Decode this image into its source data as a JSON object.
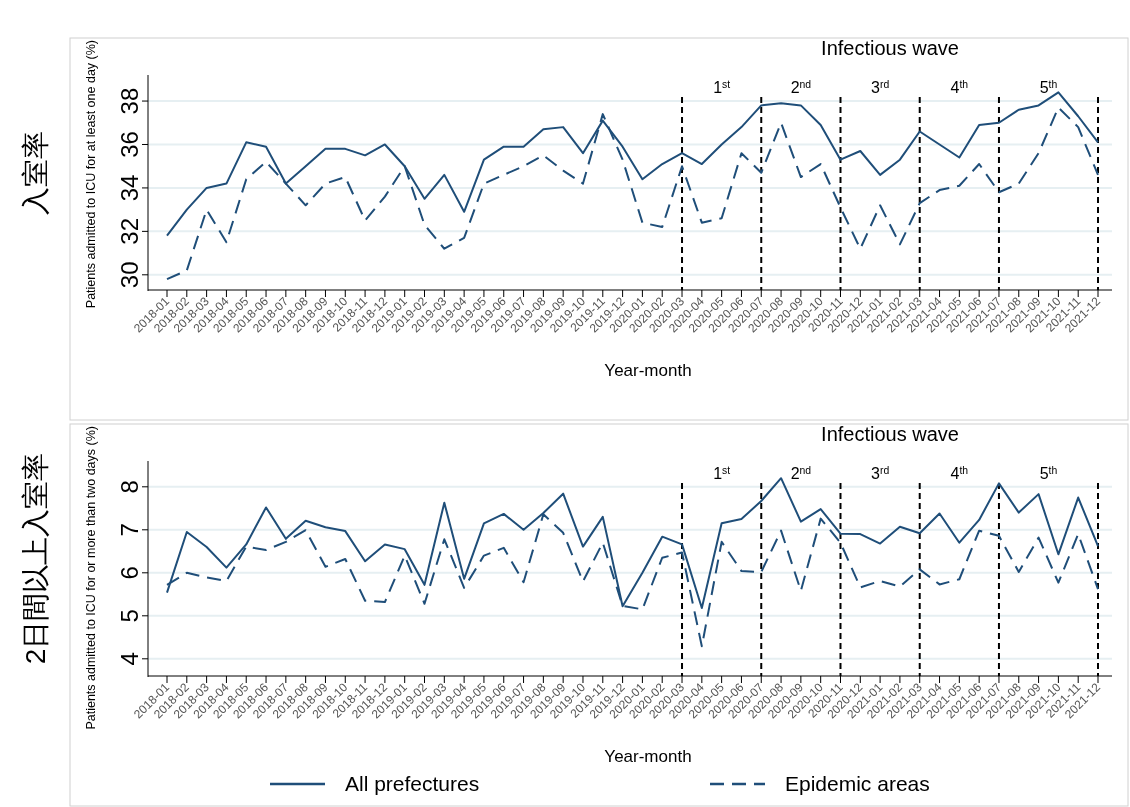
{
  "chart_data": [
    {
      "type": "line",
      "title": "入室率",
      "ylabel": "Patients admitted to ICU for at least one day (%)",
      "xlabel": "Year-month",
      "categories": [
        "2018-01",
        "2018-02",
        "2018-03",
        "2018-04",
        "2018-05",
        "2018-06",
        "2018-07",
        "2018-08",
        "2018-09",
        "2018-10",
        "2018-11",
        "2018-12",
        "2019-01",
        "2019-02",
        "2019-03",
        "2019-04",
        "2019-05",
        "2019-06",
        "2019-07",
        "2019-08",
        "2019-09",
        "2019-10",
        "2019-11",
        "2019-12",
        "2020-01",
        "2020-02",
        "2020-03",
        "2020-04",
        "2020-05",
        "2020-06",
        "2020-07",
        "2020-08",
        "2020-09",
        "2020-10",
        "2020-11",
        "2020-12",
        "2021-01",
        "2021-02",
        "2021-03",
        "2021-04",
        "2021-05",
        "2021-06",
        "2021-07",
        "2021-08",
        "2021-09",
        "2021-10",
        "2021-11",
        "2021-12"
      ],
      "series": [
        {
          "color": "#1f4e79",
          "line_style": "solid",
          "values": [
            31.8,
            33.0,
            34.0,
            34.2,
            36.1,
            35.9,
            34.2,
            35.0,
            35.8,
            35.8,
            35.5,
            36.0,
            35.0,
            33.5,
            34.6,
            32.9,
            35.3,
            35.9,
            35.9,
            36.7,
            36.8,
            35.6,
            37.1,
            35.9,
            34.4,
            35.1,
            35.6,
            35.1,
            36.0,
            36.8,
            37.8,
            37.9,
            37.8,
            36.9,
            35.3,
            35.7,
            34.6,
            35.3,
            36.6,
            36.0,
            35.4,
            36.9,
            37.0,
            37.6,
            37.8,
            38.4,
            37.3,
            36.1
          ]
        },
        {
          "color": "#1f4e79",
          "line_style": "dashed",
          "values": [
            29.8,
            30.2,
            33.0,
            31.5,
            34.4,
            35.2,
            34.2,
            33.2,
            34.2,
            34.5,
            32.5,
            33.6,
            35.0,
            32.3,
            31.2,
            31.7,
            34.2,
            34.6,
            35.0,
            35.5,
            34.8,
            34.2,
            37.4,
            35.3,
            32.4,
            32.2,
            35.0,
            32.4,
            32.6,
            35.6,
            34.7,
            37.0,
            34.5,
            35.1,
            33.1,
            31.2,
            33.2,
            31.4,
            33.3,
            33.9,
            34.1,
            35.1,
            33.8,
            34.2,
            35.6,
            37.7,
            36.8,
            34.6
          ]
        }
      ],
      "ylim": [
        29.3,
        39.2
      ],
      "yticks": [
        30,
        32,
        34,
        36,
        38
      ],
      "grid": "y",
      "legend": false,
      "ref_lines": [
        {
          "axis": "x",
          "value": "2020-03",
          "color": "#000000",
          "line_style": "dashed"
        },
        {
          "axis": "x",
          "value": "2020-07",
          "color": "#000000",
          "line_style": "dashed"
        },
        {
          "axis": "x",
          "value": "2020-11",
          "color": "#000000",
          "line_style": "dashed"
        },
        {
          "axis": "x",
          "value": "2021-03",
          "color": "#000000",
          "line_style": "dashed"
        },
        {
          "axis": "x",
          "value": "2021-07",
          "color": "#000000",
          "line_style": "dashed"
        },
        {
          "axis": "x",
          "value": "2021-12",
          "color": "#000000",
          "line_style": "dashed"
        }
      ],
      "annotations": [
        "Infectious wave",
        "1$^{st}$",
        "2$^{nd}$",
        "3$^{rd}$",
        "4$^{th}$",
        "5$^{th}$"
      ]
    },
    {
      "type": "line",
      "title": "2日間以上入室率",
      "ylabel": "Patients admitted to ICU for or more than two days (%)",
      "xlabel": "Year-month",
      "categories": [
        "2018-01",
        "2018-02",
        "2018-03",
        "2018-04",
        "2018-05",
        "2018-06",
        "2018-07",
        "2018-08",
        "2018-09",
        "2018-10",
        "2018-11",
        "2018-12",
        "2019-01",
        "2019-02",
        "2019-03",
        "2019-04",
        "2019-05",
        "2019-06",
        "2019-07",
        "2019-08",
        "2019-09",
        "2019-10",
        "2019-11",
        "2019-12",
        "2020-01",
        "2020-02",
        "2020-03",
        "2020-04",
        "2020-05",
        "2020-06",
        "2020-07",
        "2020-08",
        "2020-09",
        "2020-10",
        "2020-11",
        "2020-12",
        "2021-01",
        "2021-02",
        "2021-03",
        "2021-04",
        "2021-05",
        "2021-06",
        "2021-07",
        "2021-08",
        "2021-09",
        "2021-10",
        "2021-11",
        "2021-12"
      ],
      "series": [
        {
          "name": "All prefectures",
          "color": "#1f4e79",
          "line_style": "solid",
          "values": [
            5.54,
            6.95,
            6.6,
            6.12,
            6.66,
            7.52,
            6.79,
            7.21,
            7.06,
            6.97,
            6.27,
            6.66,
            6.55,
            5.72,
            7.63,
            5.86,
            7.15,
            7.37,
            7.0,
            7.39,
            7.84,
            6.61,
            7.3,
            5.22,
            6.0,
            6.84,
            6.66,
            5.18,
            7.15,
            7.25,
            7.67,
            8.2,
            7.19,
            7.48,
            6.91,
            6.9,
            6.68,
            7.07,
            6.92,
            7.38,
            6.7,
            7.23,
            8.08,
            7.4,
            7.83,
            6.43,
            7.75,
            6.62
          ]
        },
        {
          "name": "Epidemic areas",
          "color": "#1f4e79",
          "line_style": "dashed",
          "values": [
            5.72,
            6.0,
            5.89,
            5.81,
            6.61,
            6.53,
            6.72,
            6.99,
            6.14,
            6.32,
            5.35,
            5.32,
            6.4,
            5.28,
            6.78,
            5.65,
            6.4,
            6.58,
            5.78,
            7.36,
            6.93,
            5.8,
            6.7,
            5.23,
            5.15,
            6.35,
            6.47,
            4.29,
            6.72,
            6.04,
            6.02,
            6.98,
            5.58,
            7.26,
            6.7,
            5.66,
            5.81,
            5.68,
            6.08,
            5.73,
            5.85,
            6.98,
            6.86,
            6.02,
            6.82,
            5.77,
            6.9,
            5.62
          ]
        }
      ],
      "ylim": [
        3.6,
        8.6
      ],
      "yticks": [
        4,
        5,
        6,
        7,
        8
      ],
      "grid": "y",
      "legend": "bottom",
      "ref_lines": [
        {
          "axis": "x",
          "value": "2020-03",
          "color": "#000000",
          "line_style": "dashed"
        },
        {
          "axis": "x",
          "value": "2020-07",
          "color": "#000000",
          "line_style": "dashed"
        },
        {
          "axis": "x",
          "value": "2020-11",
          "color": "#000000",
          "line_style": "dashed"
        },
        {
          "axis": "x",
          "value": "2021-03",
          "color": "#000000",
          "line_style": "dashed"
        },
        {
          "axis": "x",
          "value": "2021-07",
          "color": "#000000",
          "line_style": "dashed"
        },
        {
          "axis": "x",
          "value": "2021-12",
          "color": "#000000",
          "line_style": "dashed"
        }
      ],
      "annotations": [
        "Infectious wave",
        "1$^{st}$",
        "2$^{nd}$",
        "3$^{rd}$",
        "4$^{th}$",
        "5$^{th}$"
      ]
    }
  ]
}
